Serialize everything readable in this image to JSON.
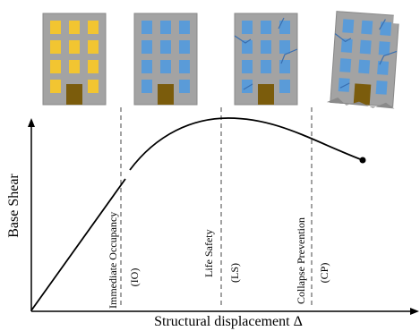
{
  "y_axis_label": "Base Shear",
  "x_axis_label": "Structural displacement Δ",
  "levels": [
    {
      "name": "Immediate Occupancy",
      "abbr": "(IO)"
    },
    {
      "name": "Life Safety",
      "abbr": "(LS)"
    },
    {
      "name": "Collapse Prevention",
      "abbr": "(CP)"
    }
  ]
}
